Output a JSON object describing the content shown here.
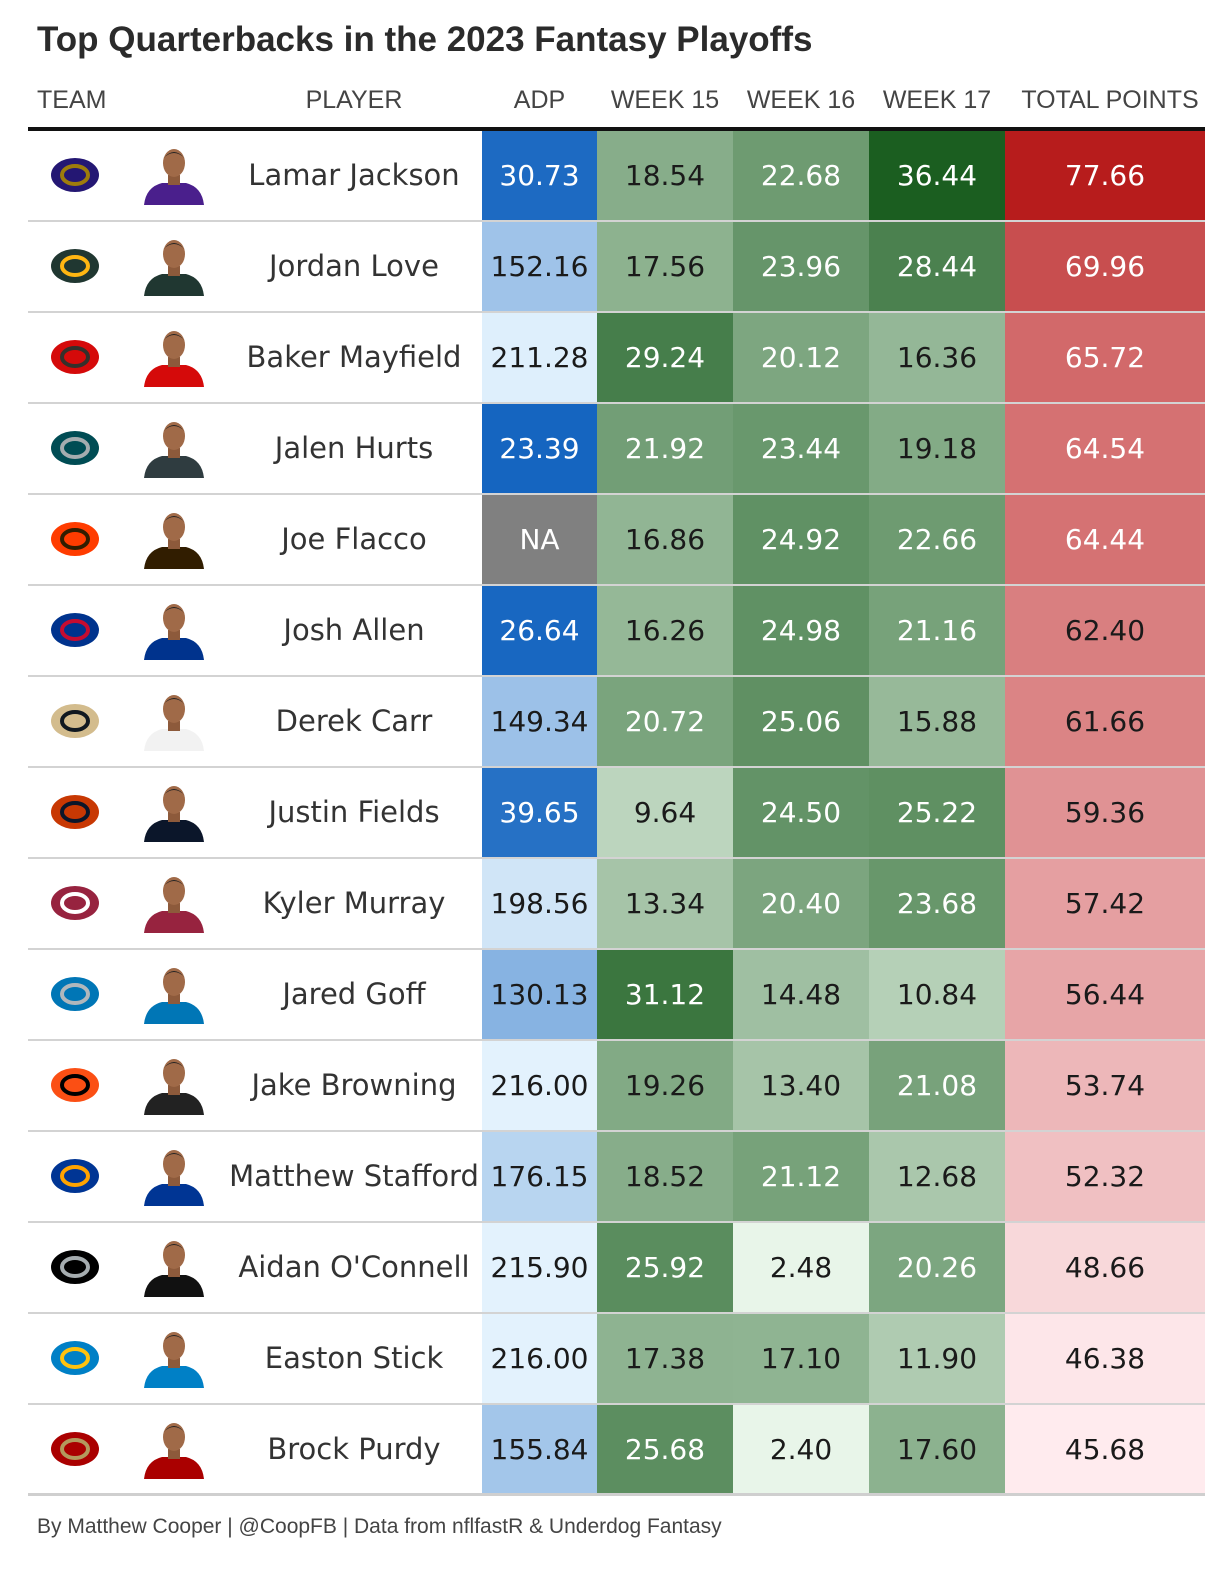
{
  "title": "Top Quarterbacks in the 2023 Fantasy Playoffs",
  "headers": {
    "team": "TEAM",
    "player": "PLAYER",
    "adp": "ADP",
    "week15": "WEEK 15",
    "week16": "WEEK 16",
    "week17": "WEEK 17",
    "total": "TOTAL POINTS"
  },
  "footer": "By Matthew Cooper | @CoopFB | Data from nflfastR & Underdog Fantasy",
  "colors": {
    "na_gray": "#808080",
    "adp_dark_blue": "#1565c0",
    "adp_light_blue": "#e3f2fd",
    "green_dark": "#1b5e20",
    "green_light": "#e8f5e9",
    "red_dark": "#b71c1c",
    "red_light": "#ffebee"
  },
  "chart_data": {
    "type": "table",
    "columns": [
      "TEAM",
      "PLAYER",
      "ADP",
      "WEEK 15",
      "WEEK 16",
      "WEEK 17",
      "TOTAL POINTS"
    ],
    "rows": [
      {
        "team_icon": "ravens-logo-icon",
        "team_color": "#241773",
        "team_accent": "#9e7c0c",
        "player": "Lamar Jackson",
        "jersey": "#4a1f8c",
        "adp": "30.73",
        "w15": "18.54",
        "w16": "22.68",
        "w17": "36.44",
        "total": "77.66"
      },
      {
        "team_icon": "packers-logo-icon",
        "team_color": "#203731",
        "team_accent": "#ffb612",
        "player": "Jordan Love",
        "jersey": "#203731",
        "adp": "152.16",
        "w15": "17.56",
        "w16": "23.96",
        "w17": "28.44",
        "total": "69.96"
      },
      {
        "team_icon": "buccaneers-logo-icon",
        "team_color": "#d50a0a",
        "team_accent": "#34302b",
        "player": "Baker Mayfield",
        "jersey": "#d50a0a",
        "adp": "211.28",
        "w15": "29.24",
        "w16": "20.12",
        "w17": "16.36",
        "total": "65.72"
      },
      {
        "team_icon": "eagles-logo-icon",
        "team_color": "#004c54",
        "team_accent": "#a5acaf",
        "player": "Jalen Hurts",
        "jersey": "#2f3c40",
        "adp": "23.39",
        "w15": "21.92",
        "w16": "23.44",
        "w17": "19.18",
        "total": "64.54"
      },
      {
        "team_icon": "browns-logo-icon",
        "team_color": "#ff3c00",
        "team_accent": "#311d00",
        "player": "Joe Flacco",
        "jersey": "#311d00",
        "adp": "NA",
        "w15": "16.86",
        "w16": "24.92",
        "w17": "22.66",
        "total": "64.44"
      },
      {
        "team_icon": "bills-logo-icon",
        "team_color": "#00338d",
        "team_accent": "#c60c30",
        "player": "Josh Allen",
        "jersey": "#00338d",
        "adp": "26.64",
        "w15": "16.26",
        "w16": "24.98",
        "w17": "21.16",
        "total": "62.40"
      },
      {
        "team_icon": "saints-logo-icon",
        "team_color": "#d3bc8d",
        "team_accent": "#101820",
        "player": "Derek Carr",
        "jersey": "#f2f2f2",
        "adp": "149.34",
        "w15": "20.72",
        "w16": "25.06",
        "w17": "15.88",
        "total": "61.66"
      },
      {
        "team_icon": "bears-logo-icon",
        "team_color": "#c83803",
        "team_accent": "#0b162a",
        "player": "Justin Fields",
        "jersey": "#0b162a",
        "adp": "39.65",
        "w15": "9.64",
        "w16": "24.50",
        "w17": "25.22",
        "total": "59.36"
      },
      {
        "team_icon": "cardinals-logo-icon",
        "team_color": "#97233f",
        "team_accent": "#ffffff",
        "player": "Kyler Murray",
        "jersey": "#97233f",
        "adp": "198.56",
        "w15": "13.34",
        "w16": "20.40",
        "w17": "23.68",
        "total": "57.42"
      },
      {
        "team_icon": "lions-logo-icon",
        "team_color": "#0076b6",
        "team_accent": "#b0b7bc",
        "player": "Jared Goff",
        "jersey": "#0076b6",
        "adp": "130.13",
        "w15": "31.12",
        "w16": "14.48",
        "w17": "10.84",
        "total": "56.44"
      },
      {
        "team_icon": "bengals-logo-icon",
        "team_color": "#fb4f14",
        "team_accent": "#000000",
        "player": "Jake Browning",
        "jersey": "#222222",
        "adp": "216.00",
        "w15": "19.26",
        "w16": "13.40",
        "w17": "21.08",
        "total": "53.74"
      },
      {
        "team_icon": "rams-logo-icon",
        "team_color": "#003594",
        "team_accent": "#ffa300",
        "player": "Matthew Stafford",
        "jersey": "#003594",
        "adp": "176.15",
        "w15": "18.52",
        "w16": "21.12",
        "w17": "12.68",
        "total": "52.32"
      },
      {
        "team_icon": "raiders-logo-icon",
        "team_color": "#000000",
        "team_accent": "#a5acaf",
        "player": "Aidan O'Connell",
        "jersey": "#111111",
        "adp": "215.90",
        "w15": "25.92",
        "w16": "2.48",
        "w17": "20.26",
        "total": "48.66"
      },
      {
        "team_icon": "chargers-logo-icon",
        "team_color": "#0080c6",
        "team_accent": "#ffc20e",
        "player": "Easton Stick",
        "jersey": "#0080c6",
        "adp": "216.00",
        "w15": "17.38",
        "w16": "17.10",
        "w17": "11.90",
        "total": "46.38"
      },
      {
        "team_icon": "49ers-logo-icon",
        "team_color": "#aa0000",
        "team_accent": "#b3995d",
        "player": "Brock Purdy",
        "jersey": "#aa0000",
        "adp": "155.84",
        "w15": "25.68",
        "w16": "2.40",
        "w17": "17.60",
        "total": "45.68"
      }
    ]
  }
}
